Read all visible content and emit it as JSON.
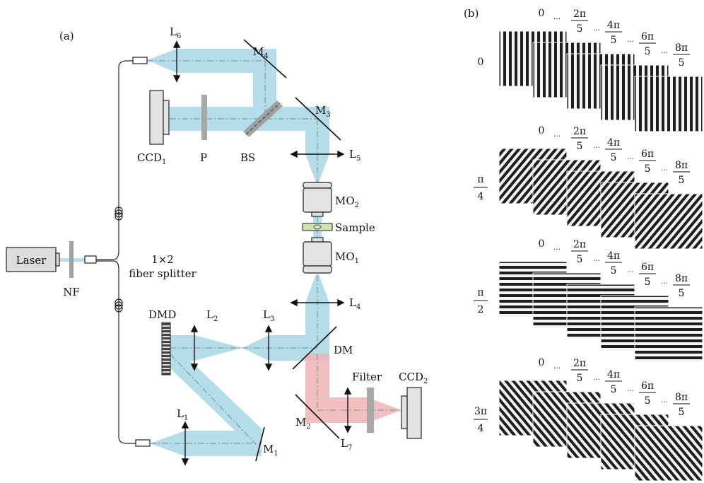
{
  "panels": {
    "a_label": "(a)",
    "b_label": "(b)"
  },
  "setup": {
    "laser": "Laser",
    "nf": "NF",
    "splitter_line1": "1×2",
    "splitter_line2": "fiber splitter",
    "dmd": "DMD",
    "l1": "L",
    "l1_sub": "1",
    "l2": "L",
    "l2_sub": "2",
    "l3": "L",
    "l3_sub": "3",
    "l4": "L",
    "l4_sub": "4",
    "l5": "L",
    "l5_sub": "5",
    "l6": "L",
    "l6_sub": "6",
    "l7": "L",
    "l7_sub": "7",
    "m1": "M",
    "m1_sub": "1",
    "m2": "M",
    "m2_sub": "2",
    "m3": "M",
    "m3_sub": "3",
    "m4": "M",
    "m4_sub": "4",
    "dm": "DM",
    "mo1": "MO",
    "mo1_sub": "1",
    "mo2": "MO",
    "mo2_sub": "2",
    "sample": "Sample",
    "ccd1": "CCD",
    "ccd1_sub": "1",
    "ccd2": "CCD",
    "ccd2_sub": "2",
    "p": "P",
    "bs": "BS",
    "filter": "Filter"
  },
  "patterns": {
    "row_angles": [
      {
        "num": "0",
        "den": ""
      },
      {
        "num": "π",
        "den": "4"
      },
      {
        "num": "π",
        "den": "2"
      },
      {
        "num": "3π",
        "den": "4"
      }
    ],
    "phase_zero": "0",
    "ellipsis": "···",
    "phases": [
      {
        "num": "2π",
        "den": "5"
      },
      {
        "num": "4π",
        "den": "5"
      },
      {
        "num": "6π",
        "den": "5"
      },
      {
        "num": "8π",
        "den": "5"
      }
    ]
  },
  "colors": {
    "blue_beam": "#a8d8e6",
    "red_beam": "#efb4b4",
    "component_gray": "#dcdcdc"
  }
}
